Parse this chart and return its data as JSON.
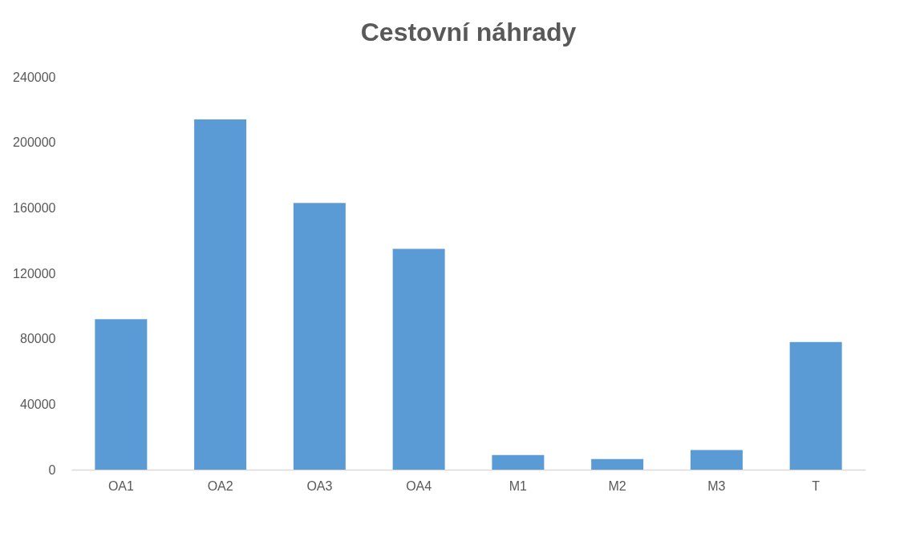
{
  "chart_data": {
    "type": "bar",
    "title": "Cestovní náhrady",
    "categories": [
      "OA1",
      "OA2",
      "OA3",
      "OA4",
      "M1",
      "M2",
      "M3",
      "T"
    ],
    "values": [
      92000,
      214000,
      163000,
      135000,
      9000,
      6500,
      12000,
      78000
    ],
    "color": "#5b9bd5",
    "ylim": [
      0,
      240000
    ],
    "yticks": [
      0,
      40000,
      80000,
      120000,
      160000,
      200000,
      240000
    ],
    "grid": false
  }
}
